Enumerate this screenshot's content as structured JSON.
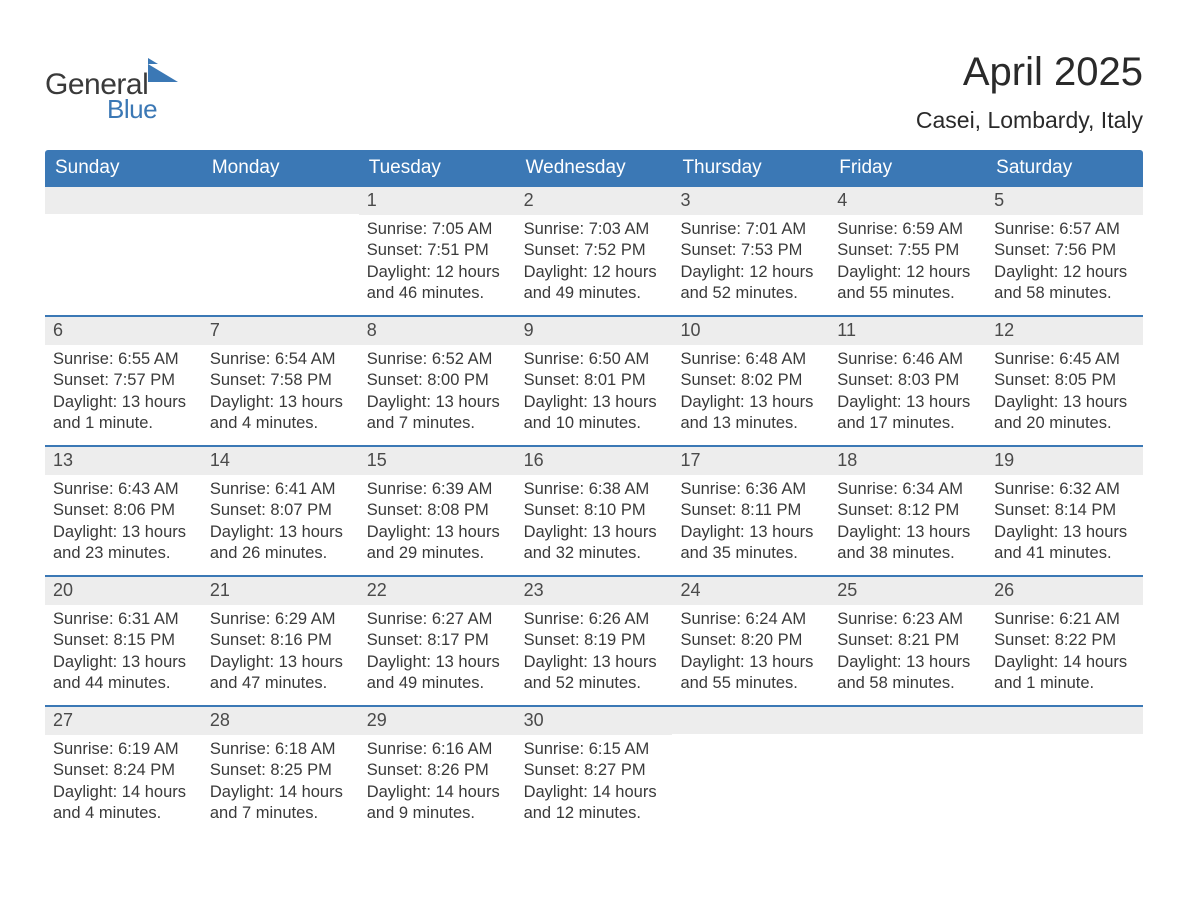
{
  "logo": {
    "word1": "General",
    "word2": "Blue"
  },
  "title": "April 2025",
  "subtitle": "Casei, Lombardy, Italy",
  "colors": {
    "header_bg": "#3b78b5",
    "header_text": "#ffffff",
    "daynum_bg": "#ededed",
    "week_border": "#3b78b5",
    "body_text": "#3a3a3a",
    "page_bg": "#ffffff",
    "logo_blue": "#3b78b5",
    "logo_gray": "#3a3a3a"
  },
  "fontsize": {
    "title": 40,
    "subtitle": 23,
    "dayhead": 19,
    "daynum": 18,
    "cell": 16.5,
    "logo1": 30,
    "logo2": 26
  },
  "day_headers": [
    "Sunday",
    "Monday",
    "Tuesday",
    "Wednesday",
    "Thursday",
    "Friday",
    "Saturday"
  ],
  "weeks": [
    [
      null,
      null,
      {
        "n": "1",
        "sr": "Sunrise: 7:05 AM",
        "ss": "Sunset: 7:51 PM",
        "d1": "Daylight: 12 hours",
        "d2": "and 46 minutes."
      },
      {
        "n": "2",
        "sr": "Sunrise: 7:03 AM",
        "ss": "Sunset: 7:52 PM",
        "d1": "Daylight: 12 hours",
        "d2": "and 49 minutes."
      },
      {
        "n": "3",
        "sr": "Sunrise: 7:01 AM",
        "ss": "Sunset: 7:53 PM",
        "d1": "Daylight: 12 hours",
        "d2": "and 52 minutes."
      },
      {
        "n": "4",
        "sr": "Sunrise: 6:59 AM",
        "ss": "Sunset: 7:55 PM",
        "d1": "Daylight: 12 hours",
        "d2": "and 55 minutes."
      },
      {
        "n": "5",
        "sr": "Sunrise: 6:57 AM",
        "ss": "Sunset: 7:56 PM",
        "d1": "Daylight: 12 hours",
        "d2": "and 58 minutes."
      }
    ],
    [
      {
        "n": "6",
        "sr": "Sunrise: 6:55 AM",
        "ss": "Sunset: 7:57 PM",
        "d1": "Daylight: 13 hours",
        "d2": "and 1 minute."
      },
      {
        "n": "7",
        "sr": "Sunrise: 6:54 AM",
        "ss": "Sunset: 7:58 PM",
        "d1": "Daylight: 13 hours",
        "d2": "and 4 minutes."
      },
      {
        "n": "8",
        "sr": "Sunrise: 6:52 AM",
        "ss": "Sunset: 8:00 PM",
        "d1": "Daylight: 13 hours",
        "d2": "and 7 minutes."
      },
      {
        "n": "9",
        "sr": "Sunrise: 6:50 AM",
        "ss": "Sunset: 8:01 PM",
        "d1": "Daylight: 13 hours",
        "d2": "and 10 minutes."
      },
      {
        "n": "10",
        "sr": "Sunrise: 6:48 AM",
        "ss": "Sunset: 8:02 PM",
        "d1": "Daylight: 13 hours",
        "d2": "and 13 minutes."
      },
      {
        "n": "11",
        "sr": "Sunrise: 6:46 AM",
        "ss": "Sunset: 8:03 PM",
        "d1": "Daylight: 13 hours",
        "d2": "and 17 minutes."
      },
      {
        "n": "12",
        "sr": "Sunrise: 6:45 AM",
        "ss": "Sunset: 8:05 PM",
        "d1": "Daylight: 13 hours",
        "d2": "and 20 minutes."
      }
    ],
    [
      {
        "n": "13",
        "sr": "Sunrise: 6:43 AM",
        "ss": "Sunset: 8:06 PM",
        "d1": "Daylight: 13 hours",
        "d2": "and 23 minutes."
      },
      {
        "n": "14",
        "sr": "Sunrise: 6:41 AM",
        "ss": "Sunset: 8:07 PM",
        "d1": "Daylight: 13 hours",
        "d2": "and 26 minutes."
      },
      {
        "n": "15",
        "sr": "Sunrise: 6:39 AM",
        "ss": "Sunset: 8:08 PM",
        "d1": "Daylight: 13 hours",
        "d2": "and 29 minutes."
      },
      {
        "n": "16",
        "sr": "Sunrise: 6:38 AM",
        "ss": "Sunset: 8:10 PM",
        "d1": "Daylight: 13 hours",
        "d2": "and 32 minutes."
      },
      {
        "n": "17",
        "sr": "Sunrise: 6:36 AM",
        "ss": "Sunset: 8:11 PM",
        "d1": "Daylight: 13 hours",
        "d2": "and 35 minutes."
      },
      {
        "n": "18",
        "sr": "Sunrise: 6:34 AM",
        "ss": "Sunset: 8:12 PM",
        "d1": "Daylight: 13 hours",
        "d2": "and 38 minutes."
      },
      {
        "n": "19",
        "sr": "Sunrise: 6:32 AM",
        "ss": "Sunset: 8:14 PM",
        "d1": "Daylight: 13 hours",
        "d2": "and 41 minutes."
      }
    ],
    [
      {
        "n": "20",
        "sr": "Sunrise: 6:31 AM",
        "ss": "Sunset: 8:15 PM",
        "d1": "Daylight: 13 hours",
        "d2": "and 44 minutes."
      },
      {
        "n": "21",
        "sr": "Sunrise: 6:29 AM",
        "ss": "Sunset: 8:16 PM",
        "d1": "Daylight: 13 hours",
        "d2": "and 47 minutes."
      },
      {
        "n": "22",
        "sr": "Sunrise: 6:27 AM",
        "ss": "Sunset: 8:17 PM",
        "d1": "Daylight: 13 hours",
        "d2": "and 49 minutes."
      },
      {
        "n": "23",
        "sr": "Sunrise: 6:26 AM",
        "ss": "Sunset: 8:19 PM",
        "d1": "Daylight: 13 hours",
        "d2": "and 52 minutes."
      },
      {
        "n": "24",
        "sr": "Sunrise: 6:24 AM",
        "ss": "Sunset: 8:20 PM",
        "d1": "Daylight: 13 hours",
        "d2": "and 55 minutes."
      },
      {
        "n": "25",
        "sr": "Sunrise: 6:23 AM",
        "ss": "Sunset: 8:21 PM",
        "d1": "Daylight: 13 hours",
        "d2": "and 58 minutes."
      },
      {
        "n": "26",
        "sr": "Sunrise: 6:21 AM",
        "ss": "Sunset: 8:22 PM",
        "d1": "Daylight: 14 hours",
        "d2": "and 1 minute."
      }
    ],
    [
      {
        "n": "27",
        "sr": "Sunrise: 6:19 AM",
        "ss": "Sunset: 8:24 PM",
        "d1": "Daylight: 14 hours",
        "d2": "and 4 minutes."
      },
      {
        "n": "28",
        "sr": "Sunrise: 6:18 AM",
        "ss": "Sunset: 8:25 PM",
        "d1": "Daylight: 14 hours",
        "d2": "and 7 minutes."
      },
      {
        "n": "29",
        "sr": "Sunrise: 6:16 AM",
        "ss": "Sunset: 8:26 PM",
        "d1": "Daylight: 14 hours",
        "d2": "and 9 minutes."
      },
      {
        "n": "30",
        "sr": "Sunrise: 6:15 AM",
        "ss": "Sunset: 8:27 PM",
        "d1": "Daylight: 14 hours",
        "d2": "and 12 minutes."
      },
      null,
      null,
      null
    ]
  ]
}
